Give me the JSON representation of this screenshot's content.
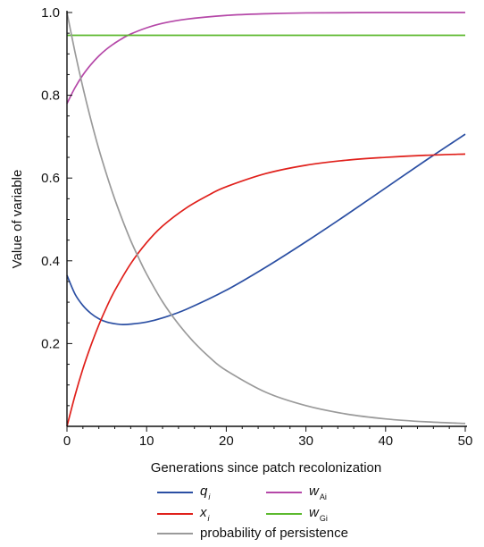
{
  "chart_data": {
    "type": "line",
    "xlabel": "Generations since patch recolonization",
    "ylabel": "Value of variable",
    "xlim": [
      0,
      50
    ],
    "ylim": [
      0,
      1.0
    ],
    "x_ticks": [
      "0",
      "10",
      "20",
      "30",
      "40",
      "50"
    ],
    "y_ticks": [
      "0.2",
      "0.4",
      "0.6",
      "0.8",
      "1.0"
    ],
    "grid": false,
    "legend_position": "bottom",
    "series": [
      {
        "name": "q_i",
        "color": "#2b4fa3",
        "x": [
          0,
          1,
          2,
          3,
          4,
          5,
          6,
          7,
          8,
          10,
          12,
          15,
          20,
          25,
          30,
          35,
          40,
          45,
          50
        ],
        "y": [
          0.365,
          0.32,
          0.292,
          0.273,
          0.26,
          0.252,
          0.248,
          0.246,
          0.247,
          0.252,
          0.262,
          0.283,
          0.329,
          0.385,
          0.446,
          0.51,
          0.576,
          0.642,
          0.706
        ]
      },
      {
        "name": "x_i",
        "color": "#e0201b",
        "x": [
          0,
          1,
          2,
          3,
          4,
          5,
          6,
          8,
          10,
          12,
          15,
          18,
          20,
          25,
          30,
          35,
          40,
          45,
          50
        ],
        "y": [
          0.0,
          0.074,
          0.139,
          0.195,
          0.245,
          0.289,
          0.328,
          0.393,
          0.444,
          0.484,
          0.528,
          0.561,
          0.579,
          0.611,
          0.631,
          0.643,
          0.65,
          0.655,
          0.658
        ]
      },
      {
        "name": "w_Ai",
        "color": "#b548a8",
        "x": [
          0,
          1,
          2,
          3,
          4,
          5,
          6,
          7,
          8,
          10,
          12,
          15,
          20,
          25,
          30,
          40,
          50
        ],
        "y": [
          0.78,
          0.818,
          0.849,
          0.874,
          0.895,
          0.912,
          0.926,
          0.938,
          0.948,
          0.963,
          0.974,
          0.984,
          0.993,
          0.997,
          0.999,
          1.0,
          1.0
        ]
      },
      {
        "name": "w_Gi",
        "color": "#5cb92e",
        "x": [
          0,
          50
        ],
        "y": [
          0.945,
          0.945
        ]
      },
      {
        "name": "probability of persistence",
        "color": "#9a9a9a",
        "x": [
          0,
          1,
          2,
          3,
          4,
          5,
          6,
          7,
          8,
          9,
          10,
          12,
          14,
          16,
          18,
          20,
          25,
          30,
          35,
          40,
          45,
          50
        ],
        "y": [
          1.0,
          0.905,
          0.819,
          0.741,
          0.67,
          0.607,
          0.549,
          0.497,
          0.449,
          0.407,
          0.368,
          0.301,
          0.247,
          0.202,
          0.165,
          0.135,
          0.082,
          0.05,
          0.03,
          0.018,
          0.011,
          0.007
        ]
      }
    ]
  },
  "legend": {
    "items": [
      {
        "id": "q",
        "symbol": "q",
        "sub": "i",
        "color": "#2b4fa3"
      },
      {
        "id": "wA",
        "symbol": "w",
        "sub": "Ai",
        "color": "#b548a8"
      },
      {
        "id": "x",
        "symbol": "x",
        "sub": "i",
        "color": "#e0201b"
      },
      {
        "id": "wG",
        "symbol": "w",
        "sub": "Gi",
        "color": "#5cb92e"
      },
      {
        "id": "persist",
        "label": "probability of persistence",
        "color": "#9a9a9a"
      }
    ]
  }
}
